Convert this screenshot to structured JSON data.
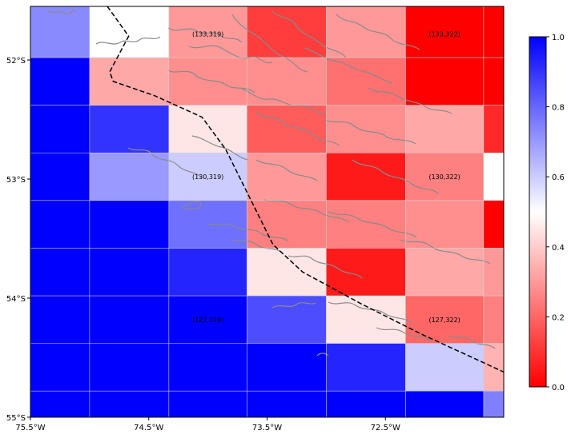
{
  "chart_data": {
    "type": "heatmap",
    "title": "",
    "xlabel": "",
    "ylabel": "",
    "x_ticks": [
      "75.5°W",
      "74.5°W",
      "73.5°W",
      "72.5°W"
    ],
    "y_ticks": [
      "52°S",
      "53°S",
      "54°S",
      "55°S"
    ],
    "xlim": [
      -75.5,
      -71.5
    ],
    "ylim": [
      -55.0,
      -51.55
    ],
    "grid": true,
    "colormap": "bwr_r",
    "colors": {
      "low": "#ff0000",
      "mid": "#ffffff",
      "high": "#0000ff"
    },
    "colorbar": {
      "range": [
        0.0,
        1.0
      ],
      "ticks": [
        "0.0",
        "0.2",
        "0.4",
        "0.6",
        "0.8",
        "1.0"
      ],
      "placement": "right"
    },
    "lon_edges": [
      -75.5,
      -75.0,
      -74.33,
      -73.67,
      -73.0,
      -72.33,
      -71.67,
      -71.5
    ],
    "lat_edges": [
      -51.55,
      -51.98,
      -52.38,
      -52.78,
      -53.18,
      -53.58,
      -53.98,
      -54.38,
      -54.78,
      -55.0
    ],
    "values": [
      [
        0.73,
        0.5,
        0.3,
        0.12,
        0.3,
        0.0,
        0.0
      ],
      [
        1.0,
        0.33,
        0.28,
        0.28,
        0.22,
        0.0,
        0.0
      ],
      [
        1.0,
        0.9,
        0.45,
        0.18,
        0.28,
        0.33,
        0.08
      ],
      [
        1.0,
        0.7,
        0.6,
        0.3,
        0.05,
        0.25,
        0.5
      ],
      [
        1.0,
        1.0,
        0.78,
        0.25,
        0.25,
        0.28,
        0.0
      ],
      [
        1.0,
        1.0,
        0.93,
        0.45,
        0.05,
        0.33,
        0.3
      ],
      [
        1.0,
        1.0,
        1.0,
        0.85,
        0.45,
        0.2,
        0.25
      ],
      [
        1.0,
        1.0,
        1.0,
        1.0,
        0.93,
        0.6,
        0.35
      ],
      [
        1.0,
        1.0,
        1.0,
        1.0,
        1.0,
        1.0,
        0.75
      ]
    ],
    "annotations": [
      {
        "text": "(133,319)",
        "lon": -74.0,
        "lat": -51.78
      },
      {
        "text": "(133,322)",
        "lon": -72.0,
        "lat": -51.78
      },
      {
        "text": "(130,319)",
        "lon": -74.0,
        "lat": -52.98
      },
      {
        "text": "(130,322)",
        "lon": -72.0,
        "lat": -52.98
      },
      {
        "text": "(127,319)",
        "lon": -74.0,
        "lat": -54.18
      },
      {
        "text": "(127,322)",
        "lon": -72.0,
        "lat": -54.18
      }
    ],
    "border_line": [
      [
        -74.85,
        -51.55
      ],
      [
        -74.67,
        -51.8
      ],
      [
        -74.83,
        -52.1
      ],
      [
        -74.8,
        -52.18
      ],
      [
        -74.45,
        -52.3
      ],
      [
        -74.05,
        -52.48
      ],
      [
        -73.85,
        -52.75
      ],
      [
        -73.65,
        -53.15
      ],
      [
        -73.45,
        -53.55
      ],
      [
        -73.2,
        -53.78
      ],
      [
        -72.7,
        -54.05
      ],
      [
        -72.2,
        -54.3
      ],
      [
        -71.5,
        -54.62
      ]
    ],
    "line_colors": {
      "border": "#000000",
      "coast": "#8a8a8a"
    }
  }
}
